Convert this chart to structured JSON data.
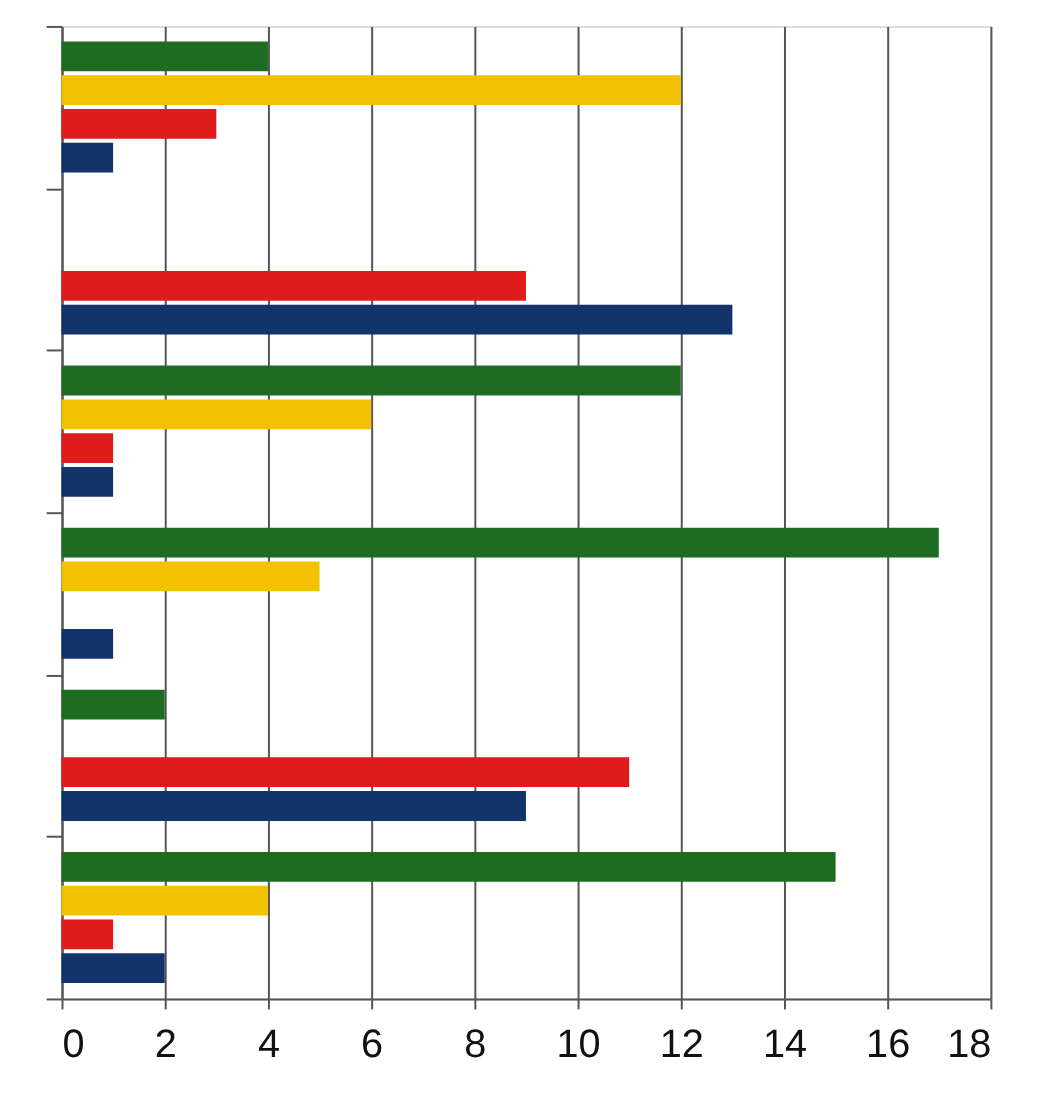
{
  "chart_data": {
    "type": "bar",
    "orientation": "horizontal",
    "categories": [
      null,
      null,
      null,
      null,
      null,
      null
    ],
    "series": [
      {
        "color": "#1e6b22",
        "values": [
          4,
          0,
          12,
          17,
          2,
          15
        ]
      },
      {
        "color": "#f2c200",
        "values": [
          12,
          0,
          6,
          5,
          0,
          4
        ]
      },
      {
        "color": "#e01b1b",
        "values": [
          3,
          9,
          1,
          0,
          11,
          1
        ]
      },
      {
        "color": "#13336b",
        "values": [
          1,
          13,
          1,
          1,
          9,
          2
        ]
      }
    ],
    "xlim": [
      0,
      18
    ],
    "xticks": [
      0,
      2,
      4,
      6,
      8,
      10,
      12,
      14,
      16,
      18
    ],
    "grid": "x",
    "legend": false,
    "tick_labels": "x"
  }
}
